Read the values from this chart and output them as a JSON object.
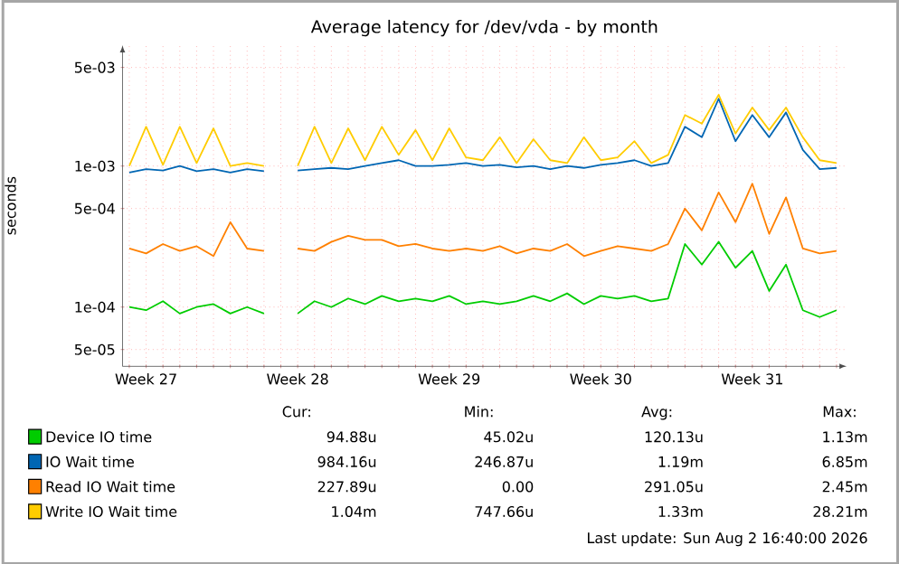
{
  "chart_data": {
    "type": "line",
    "title": "Average latency for /dev/vda - by month",
    "ylabel": "seconds",
    "log": "y",
    "grid": true,
    "legend": "bottom",
    "ylim": [
      3.8e-05,
      0.0072
    ],
    "yticks": [
      {
        "value": 5e-05,
        "label": "5e-05"
      },
      {
        "value": 0.0001,
        "label": "1e-04"
      },
      {
        "value": 0.0005,
        "label": "5e-04"
      },
      {
        "value": 0.001,
        "label": "1e-03"
      },
      {
        "value": 0.005,
        "label": "5e-03"
      }
    ],
    "categories": [
      null,
      "Week 27",
      null,
      null,
      null,
      null,
      null,
      null,
      null,
      null,
      "Week 28",
      null,
      null,
      null,
      null,
      null,
      null,
      null,
      null,
      "Week 29",
      null,
      null,
      null,
      null,
      null,
      null,
      null,
      null,
      "Week 30",
      null,
      null,
      null,
      null,
      null,
      null,
      null,
      null,
      "Week 31",
      null,
      null,
      null,
      null,
      null
    ],
    "series": [
      {
        "name": "Device IO time",
        "color": "#00cc00",
        "values": [
          0.0001,
          9.5e-05,
          0.00011,
          9e-05,
          0.0001,
          0.000105,
          9e-05,
          0.0001,
          9e-05,
          null,
          9e-05,
          0.00011,
          0.0001,
          0.000115,
          0.000105,
          0.00012,
          0.00011,
          0.000115,
          0.00011,
          0.00012,
          0.000105,
          0.00011,
          0.000105,
          0.00011,
          0.00012,
          0.00011,
          0.000125,
          0.000105,
          0.00012,
          0.000115,
          0.00012,
          0.00011,
          0.000115,
          0.00028,
          0.0002,
          0.00029,
          0.00019,
          0.00025,
          0.00013,
          0.0002,
          9.5e-05,
          8.5e-05,
          9.5e-05
        ]
      },
      {
        "name": "IO Wait time",
        "color": "#0066b3",
        "values": [
          0.0009,
          0.00095,
          0.00093,
          0.001,
          0.00092,
          0.00095,
          0.0009,
          0.00095,
          0.00092,
          null,
          0.00093,
          0.00095,
          0.00097,
          0.00095,
          0.001,
          0.00105,
          0.0011,
          0.001,
          0.001,
          0.00102,
          0.00105,
          0.001,
          0.00102,
          0.00098,
          0.001,
          0.00095,
          0.001,
          0.00097,
          0.00102,
          0.00105,
          0.0011,
          0.001,
          0.00105,
          0.0019,
          0.0016,
          0.003,
          0.0015,
          0.0023,
          0.0016,
          0.0024,
          0.0013,
          0.00095,
          0.00097
        ]
      },
      {
        "name": "Read IO Wait time",
        "color": "#ff8000",
        "values": [
          0.00026,
          0.00024,
          0.00028,
          0.00025,
          0.00027,
          0.00023,
          0.0004,
          0.00026,
          0.00025,
          null,
          0.00026,
          0.00025,
          0.00029,
          0.00032,
          0.0003,
          0.0003,
          0.00027,
          0.00028,
          0.00026,
          0.00025,
          0.00026,
          0.00025,
          0.00027,
          0.00024,
          0.00026,
          0.00025,
          0.00028,
          0.00023,
          0.00025,
          0.00027,
          0.00026,
          0.00025,
          0.00028,
          0.0005,
          0.00035,
          0.00065,
          0.0004,
          0.00075,
          0.00033,
          0.0006,
          0.00026,
          0.00024,
          0.00025
        ]
      },
      {
        "name": "Write IO Wait time",
        "color": "#ffcc00",
        "values": [
          0.001,
          0.0019,
          0.00102,
          0.0019,
          0.00105,
          0.00185,
          0.001,
          0.00105,
          0.001,
          null,
          0.001,
          0.0019,
          0.00105,
          0.00185,
          0.0011,
          0.0019,
          0.0012,
          0.0018,
          0.0011,
          0.00185,
          0.00115,
          0.0011,
          0.0016,
          0.00105,
          0.00155,
          0.0011,
          0.00105,
          0.0016,
          0.0011,
          0.00115,
          0.0015,
          0.00105,
          0.0012,
          0.0023,
          0.002,
          0.0032,
          0.0017,
          0.0026,
          0.0018,
          0.0026,
          0.0016,
          0.0011,
          0.00105
        ]
      }
    ],
    "annotations": [
      "Cur:",
      "Min:",
      "Avg:",
      "Max:",
      "94.88u",
      "45.02u",
      "120.13u",
      "1.13m",
      "984.16u",
      "246.87u",
      "1.19m",
      "6.85m",
      "227.89u",
      "0.00",
      "291.05u",
      "2.45m",
      "1.04m",
      "747.66u",
      "1.33m",
      "28.21m",
      "Last update: Sun Aug 2 16:40:00 2026"
    ]
  }
}
